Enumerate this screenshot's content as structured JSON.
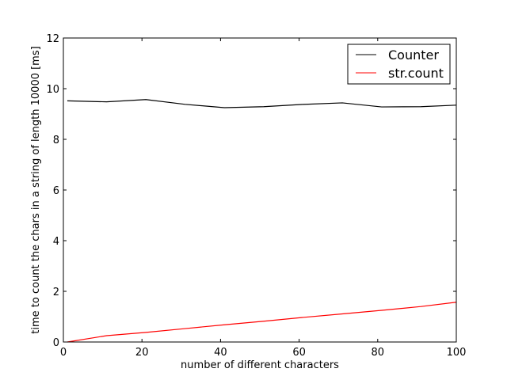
{
  "chart_data": {
    "type": "line",
    "title": "",
    "xlabel": "number of different characters",
    "ylabel": "time to count the chars in a string of length 10000 [ms]",
    "xlim": [
      0,
      100
    ],
    "ylim": [
      0,
      12
    ],
    "xticks": [
      0,
      20,
      40,
      60,
      80,
      100
    ],
    "yticks": [
      0,
      2,
      4,
      6,
      8,
      10,
      12
    ],
    "grid": false,
    "legend_position": "top-right",
    "x": [
      1,
      11,
      21,
      31,
      41,
      51,
      61,
      71,
      81,
      91,
      100
    ],
    "series": [
      {
        "name": "Counter",
        "color": "#000000",
        "values": [
          9.52,
          9.48,
          9.57,
          9.38,
          9.25,
          9.29,
          9.38,
          9.44,
          9.28,
          9.29,
          9.35
        ]
      },
      {
        "name": "str.count",
        "color": "#ff0000",
        "values": [
          0.0,
          0.25,
          0.38,
          0.53,
          0.68,
          0.82,
          0.97,
          1.11,
          1.25,
          1.4,
          1.57
        ]
      }
    ]
  }
}
